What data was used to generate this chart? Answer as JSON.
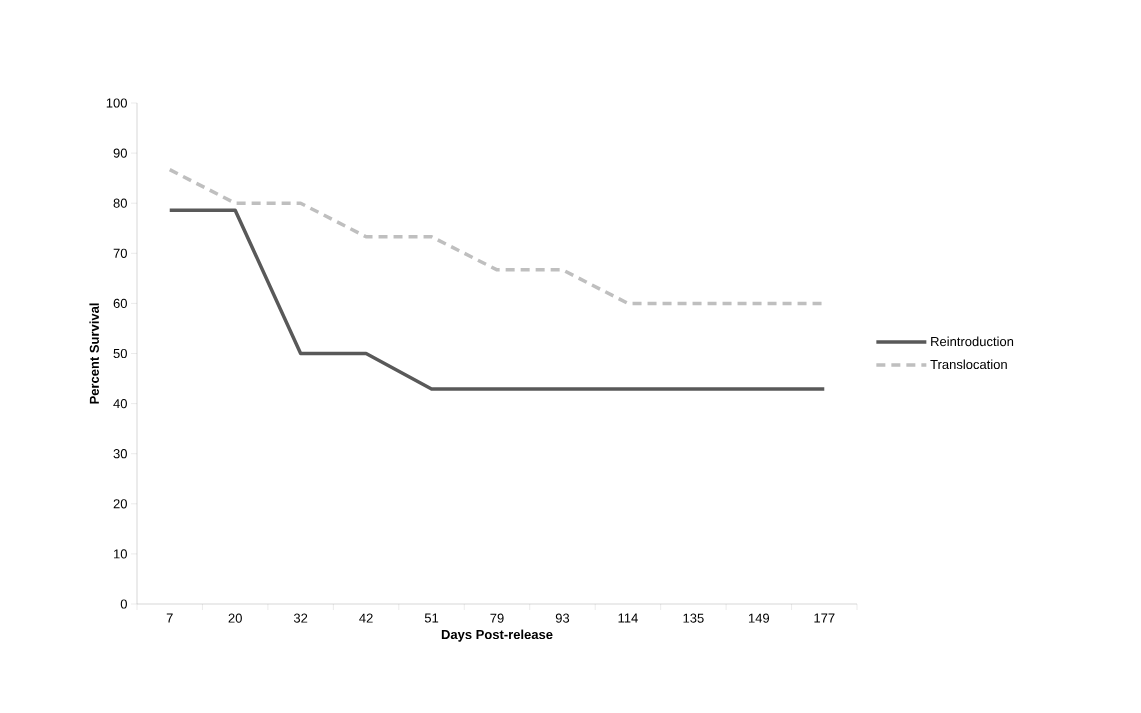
{
  "chart_data": {
    "type": "line",
    "xlabel": "Days Post-release",
    "ylabel": "Percent Survival",
    "categories": [
      "7",
      "20",
      "32",
      "42",
      "51",
      "79",
      "93",
      "114",
      "135",
      "149",
      "177"
    ],
    "series": [
      {
        "name": "Reintroduction",
        "color": "#595959",
        "line_style": "solid",
        "values": [
          78.6,
          78.6,
          50,
          50,
          42.9,
          42.9,
          42.9,
          42.9,
          42.9,
          42.9,
          42.9
        ]
      },
      {
        "name": "Translocation",
        "color": "#bfbfbf",
        "line_style": "dashed",
        "values": [
          86.7,
          80,
          80,
          73.3,
          73.3,
          66.7,
          66.7,
          60,
          60,
          60,
          60
        ]
      }
    ],
    "ylim": [
      0,
      100
    ],
    "yticks": [
      0,
      10,
      20,
      30,
      40,
      50,
      60,
      70,
      80,
      90,
      100
    ],
    "legend": "right"
  }
}
